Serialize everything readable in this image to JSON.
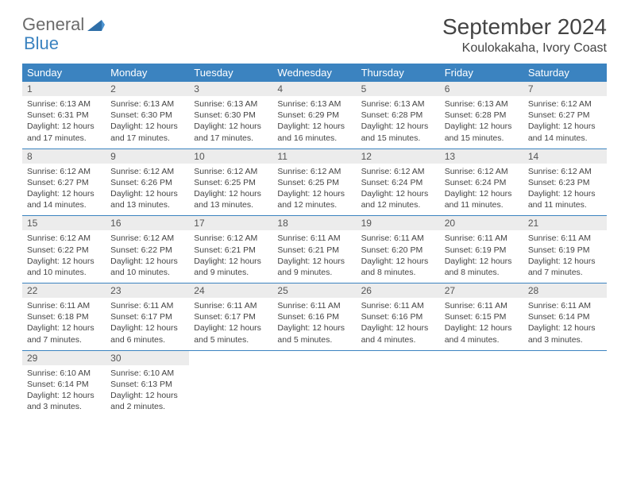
{
  "logo": {
    "text1": "General",
    "text2": "Blue"
  },
  "title": "September 2024",
  "location": "Koulokakaha, Ivory Coast",
  "dow": [
    "Sunday",
    "Monday",
    "Tuesday",
    "Wednesday",
    "Thursday",
    "Friday",
    "Saturday"
  ],
  "colors": {
    "header_bg": "#3b83c0",
    "header_text": "#ffffff",
    "daynum_bg": "#ececec",
    "text": "#444444",
    "rule": "#3b83c0"
  },
  "weeks": [
    [
      {
        "n": "1",
        "sunrise": "6:13 AM",
        "sunset": "6:31 PM",
        "dl": "12 hours and 17 minutes."
      },
      {
        "n": "2",
        "sunrise": "6:13 AM",
        "sunset": "6:30 PM",
        "dl": "12 hours and 17 minutes."
      },
      {
        "n": "3",
        "sunrise": "6:13 AM",
        "sunset": "6:30 PM",
        "dl": "12 hours and 17 minutes."
      },
      {
        "n": "4",
        "sunrise": "6:13 AM",
        "sunset": "6:29 PM",
        "dl": "12 hours and 16 minutes."
      },
      {
        "n": "5",
        "sunrise": "6:13 AM",
        "sunset": "6:28 PM",
        "dl": "12 hours and 15 minutes."
      },
      {
        "n": "6",
        "sunrise": "6:13 AM",
        "sunset": "6:28 PM",
        "dl": "12 hours and 15 minutes."
      },
      {
        "n": "7",
        "sunrise": "6:12 AM",
        "sunset": "6:27 PM",
        "dl": "12 hours and 14 minutes."
      }
    ],
    [
      {
        "n": "8",
        "sunrise": "6:12 AM",
        "sunset": "6:27 PM",
        "dl": "12 hours and 14 minutes."
      },
      {
        "n": "9",
        "sunrise": "6:12 AM",
        "sunset": "6:26 PM",
        "dl": "12 hours and 13 minutes."
      },
      {
        "n": "10",
        "sunrise": "6:12 AM",
        "sunset": "6:25 PM",
        "dl": "12 hours and 13 minutes."
      },
      {
        "n": "11",
        "sunrise": "6:12 AM",
        "sunset": "6:25 PM",
        "dl": "12 hours and 12 minutes."
      },
      {
        "n": "12",
        "sunrise": "6:12 AM",
        "sunset": "6:24 PM",
        "dl": "12 hours and 12 minutes."
      },
      {
        "n": "13",
        "sunrise": "6:12 AM",
        "sunset": "6:24 PM",
        "dl": "12 hours and 11 minutes."
      },
      {
        "n": "14",
        "sunrise": "6:12 AM",
        "sunset": "6:23 PM",
        "dl": "12 hours and 11 minutes."
      }
    ],
    [
      {
        "n": "15",
        "sunrise": "6:12 AM",
        "sunset": "6:22 PM",
        "dl": "12 hours and 10 minutes."
      },
      {
        "n": "16",
        "sunrise": "6:12 AM",
        "sunset": "6:22 PM",
        "dl": "12 hours and 10 minutes."
      },
      {
        "n": "17",
        "sunrise": "6:12 AM",
        "sunset": "6:21 PM",
        "dl": "12 hours and 9 minutes."
      },
      {
        "n": "18",
        "sunrise": "6:11 AM",
        "sunset": "6:21 PM",
        "dl": "12 hours and 9 minutes."
      },
      {
        "n": "19",
        "sunrise": "6:11 AM",
        "sunset": "6:20 PM",
        "dl": "12 hours and 8 minutes."
      },
      {
        "n": "20",
        "sunrise": "6:11 AM",
        "sunset": "6:19 PM",
        "dl": "12 hours and 8 minutes."
      },
      {
        "n": "21",
        "sunrise": "6:11 AM",
        "sunset": "6:19 PM",
        "dl": "12 hours and 7 minutes."
      }
    ],
    [
      {
        "n": "22",
        "sunrise": "6:11 AM",
        "sunset": "6:18 PM",
        "dl": "12 hours and 7 minutes."
      },
      {
        "n": "23",
        "sunrise": "6:11 AM",
        "sunset": "6:17 PM",
        "dl": "12 hours and 6 minutes."
      },
      {
        "n": "24",
        "sunrise": "6:11 AM",
        "sunset": "6:17 PM",
        "dl": "12 hours and 5 minutes."
      },
      {
        "n": "25",
        "sunrise": "6:11 AM",
        "sunset": "6:16 PM",
        "dl": "12 hours and 5 minutes."
      },
      {
        "n": "26",
        "sunrise": "6:11 AM",
        "sunset": "6:16 PM",
        "dl": "12 hours and 4 minutes."
      },
      {
        "n": "27",
        "sunrise": "6:11 AM",
        "sunset": "6:15 PM",
        "dl": "12 hours and 4 minutes."
      },
      {
        "n": "28",
        "sunrise": "6:11 AM",
        "sunset": "6:14 PM",
        "dl": "12 hours and 3 minutes."
      }
    ],
    [
      {
        "n": "29",
        "sunrise": "6:10 AM",
        "sunset": "6:14 PM",
        "dl": "12 hours and 3 minutes."
      },
      {
        "n": "30",
        "sunrise": "6:10 AM",
        "sunset": "6:13 PM",
        "dl": "12 hours and 2 minutes."
      },
      null,
      null,
      null,
      null,
      null
    ]
  ],
  "labels": {
    "sunrise": "Sunrise:",
    "sunset": "Sunset:",
    "daylight": "Daylight:"
  }
}
